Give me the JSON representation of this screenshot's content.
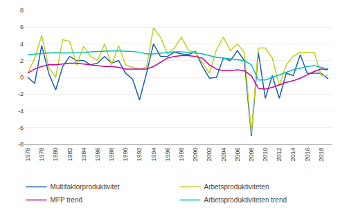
{
  "chart_data": {
    "type": "line",
    "x": [
      1976,
      1977,
      1978,
      1979,
      1980,
      1981,
      1982,
      1983,
      1984,
      1985,
      1986,
      1987,
      1988,
      1989,
      1990,
      1991,
      1992,
      1993,
      1994,
      1995,
      1996,
      1997,
      1998,
      1999,
      2000,
      2001,
      2002,
      2003,
      2004,
      2005,
      2006,
      2007,
      2008,
      2009,
      2010,
      2011,
      2012,
      2013,
      2014,
      2015,
      2016,
      2017,
      2018,
      2019
    ],
    "series": [
      {
        "name": "Multifaktorproduktivitet",
        "color": "#1B5FAD",
        "values": [
          0.0,
          -0.7,
          3.8,
          0.5,
          -1.5,
          1.3,
          2.5,
          2.0,
          2.0,
          1.5,
          1.7,
          2.5,
          1.7,
          2.0,
          0.5,
          -0.2,
          -2.7,
          0.5,
          4.0,
          2.5,
          2.5,
          3.0,
          2.8,
          2.7,
          3.1,
          1.3,
          -0.1,
          0.0,
          2.3,
          2.0,
          3.2,
          2.0,
          -7.0,
          3.0,
          -2.5,
          0.2,
          -2.5,
          0.5,
          0.2,
          2.7,
          0.5,
          0.5,
          0.5,
          -0.2
        ]
      },
      {
        "name": "Arbetsproduktiviteten",
        "color": "#C4CE1A",
        "values": [
          0.5,
          2.3,
          5.0,
          1.2,
          0.0,
          4.5,
          4.3,
          1.5,
          3.7,
          2.5,
          2.0,
          4.0,
          1.5,
          3.8,
          1.5,
          1.2,
          1.0,
          1.2,
          5.9,
          4.8,
          2.8,
          3.5,
          4.8,
          3.2,
          3.0,
          1.7,
          0.5,
          3.3,
          4.8,
          3.2,
          4.0,
          3.0,
          -6.7,
          3.5,
          3.5,
          2.3,
          -1.0,
          1.5,
          2.5,
          3.0,
          3.0,
          3.0,
          0.2,
          0.2
        ]
      },
      {
        "name": "MFP trend",
        "color": "#CC0099",
        "values": [
          0.5,
          1.0,
          1.3,
          1.5,
          1.5,
          1.6,
          1.7,
          1.7,
          1.6,
          1.5,
          1.4,
          1.3,
          1.3,
          1.2,
          1.0,
          1.0,
          1.0,
          1.0,
          1.3,
          1.8,
          2.3,
          2.5,
          2.6,
          2.6,
          2.5,
          2.3,
          1.5,
          1.0,
          0.8,
          0.8,
          0.9,
          0.8,
          0.2,
          -1.3,
          -1.4,
          -1.2,
          -0.9,
          -0.6,
          -0.4,
          -0.1,
          0.3,
          0.7,
          1.0,
          0.9
        ]
      },
      {
        "name": "Arbetsproduktiviteten trend",
        "color": "#00BFBF",
        "values": [
          2.7,
          2.8,
          2.85,
          2.9,
          2.95,
          2.9,
          2.9,
          2.9,
          2.95,
          3.05,
          3.1,
          3.1,
          3.15,
          3.15,
          3.15,
          3.1,
          3.0,
          2.8,
          2.8,
          2.9,
          3.0,
          3.05,
          3.05,
          3.0,
          2.9,
          2.8,
          2.6,
          2.4,
          2.3,
          2.2,
          2.1,
          2.0,
          1.5,
          -0.3,
          -0.3,
          0.0,
          0.3,
          0.6,
          0.9,
          1.1,
          1.3,
          1.4,
          1.2,
          1.0
        ]
      }
    ],
    "xlim": [
      1975.5,
      2019.5
    ],
    "xticks": [
      1976,
      1978,
      1980,
      1982,
      1984,
      1986,
      1988,
      1990,
      1992,
      1994,
      1996,
      1998,
      2000,
      2002,
      2004,
      2006,
      2008,
      2010,
      2012,
      2014,
      2016,
      2018
    ],
    "ylim": [
      -8,
      8
    ],
    "yticks": [
      -8,
      -6,
      -4,
      -2,
      0,
      2,
      4,
      6,
      8
    ],
    "grid": "y",
    "legend": "bottom"
  }
}
